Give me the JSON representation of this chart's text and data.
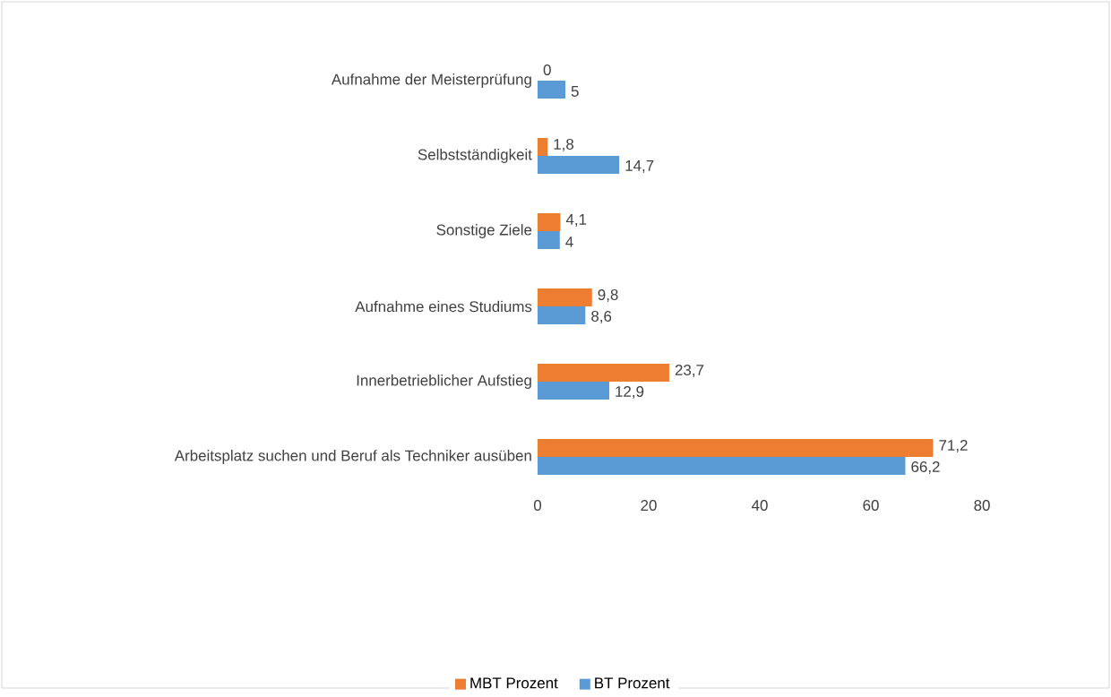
{
  "chart_data": {
    "type": "bar",
    "orientation": "horizontal",
    "categories": [
      "Aufnahme der Meisterprüfung",
      "Selbstständigkeit",
      "Sonstige Ziele",
      "Aufnahme eines Studiums",
      "Innerbetrieblicher Aufstieg",
      "Arbeitsplatz suchen und Beruf als Techniker ausüben"
    ],
    "series": [
      {
        "name": "MBT Prozent",
        "color": "#ed7d31",
        "values": [
          0,
          1.8,
          4.1,
          9.8,
          23.7,
          71.2
        ],
        "value_labels": [
          "0",
          "1,8",
          "4,1",
          "9,8",
          "23,7",
          "71,2"
        ]
      },
      {
        "name": "BT Prozent",
        "color": "#5b9bd5",
        "values": [
          5,
          14.7,
          4,
          8.6,
          12.9,
          66.2
        ],
        "value_labels": [
          "5",
          "14,7",
          "4",
          "8,6",
          "12,9",
          "66,2"
        ]
      }
    ],
    "xlim": [
      0,
      80
    ],
    "xticks": [
      0,
      20,
      40,
      60,
      80
    ],
    "grid": false,
    "legend": "bottom"
  }
}
